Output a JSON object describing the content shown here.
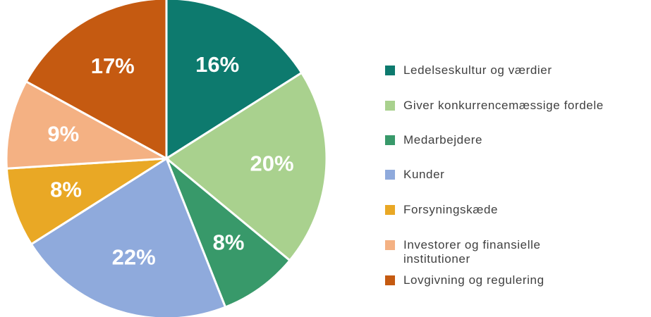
{
  "chart_data": {
    "type": "pie",
    "categories": [
      "Ledelseskultur og værdier",
      "Giver konkurrencemæssige fordele",
      "Medarbejdere",
      "Kunder",
      "Forsyningskæde",
      "Investorer og finansielle institutioner",
      "Lovgivning og regulering"
    ],
    "values": [
      16,
      20,
      8,
      22,
      8,
      9,
      17
    ],
    "value_labels": [
      "16%",
      "20%",
      "8%",
      "22%",
      "8%",
      "9%",
      "17%"
    ],
    "colors": [
      "#0d7a6e",
      "#a9d18e",
      "#38996a",
      "#8faadc",
      "#e9a825",
      "#f4b183",
      "#c55a11"
    ],
    "legend": "right"
  }
}
